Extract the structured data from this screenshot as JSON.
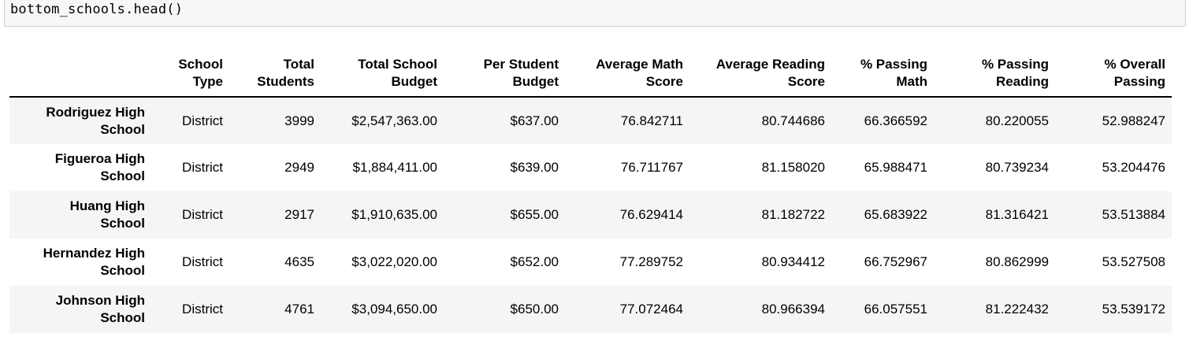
{
  "code_cell": {
    "source": "bottom_schools.head()"
  },
  "table": {
    "columns": [
      "School\nType",
      "Total\nStudents",
      "Total School\nBudget",
      "Per Student\nBudget",
      "Average Math\nScore",
      "Average Reading\nScore",
      "% Passing\nMath",
      "% Passing\nReading",
      "% Overall\nPassing"
    ],
    "rows": [
      {
        "index": "Rodriguez High School",
        "cells": [
          "District",
          "3999",
          "$2,547,363.00",
          "$637.00",
          "76.842711",
          "80.744686",
          "66.366592",
          "80.220055",
          "52.988247"
        ]
      },
      {
        "index": "Figueroa High School",
        "cells": [
          "District",
          "2949",
          "$1,884,411.00",
          "$639.00",
          "76.711767",
          "81.158020",
          "65.988471",
          "80.739234",
          "53.204476"
        ]
      },
      {
        "index": "Huang High School",
        "cells": [
          "District",
          "2917",
          "$1,910,635.00",
          "$655.00",
          "76.629414",
          "81.182722",
          "65.683922",
          "81.316421",
          "53.513884"
        ]
      },
      {
        "index": "Hernandez High School",
        "cells": [
          "District",
          "4635",
          "$3,022,020.00",
          "$652.00",
          "77.289752",
          "80.934412",
          "66.752967",
          "80.862999",
          "53.527508"
        ]
      },
      {
        "index": "Johnson High School",
        "cells": [
          "District",
          "4761",
          "$3,094,650.00",
          "$650.00",
          "77.072464",
          "80.966394",
          "66.057551",
          "81.222432",
          "53.539172"
        ]
      }
    ]
  }
}
